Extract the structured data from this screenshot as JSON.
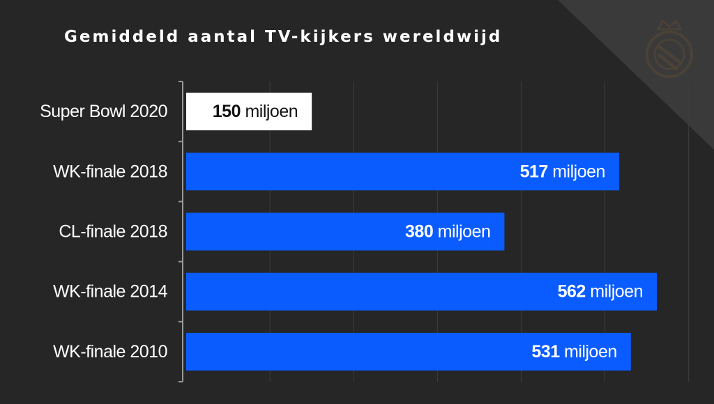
{
  "chart_data": {
    "type": "bar",
    "orientation": "horizontal",
    "title": "Gemiddeld aantal TV-kijkers wereldwijd",
    "categories": [
      "Super Bowl 2020",
      "WK-finale 2018",
      "CL-finale 2018",
      "WK-finale 2014",
      "WK-finale 2010"
    ],
    "values": [
      150,
      517,
      380,
      562,
      531
    ],
    "value_unit": "miljoen",
    "xlim": [
      0,
      600
    ],
    "grid": true,
    "legend": "none",
    "colors": {
      "background": "#262626",
      "bar": "#0a5cff",
      "highlight_bar": "#ffffff",
      "highlight_label": "#111111",
      "grid": "#3d3d3d",
      "axis": "#9a9a9a",
      "text": "#ffffff",
      "corner": "#3a3a3a",
      "logo": "#4a4237"
    },
    "highlight_index": 0
  },
  "logo": {
    "icon": "club-crest-icon"
  }
}
